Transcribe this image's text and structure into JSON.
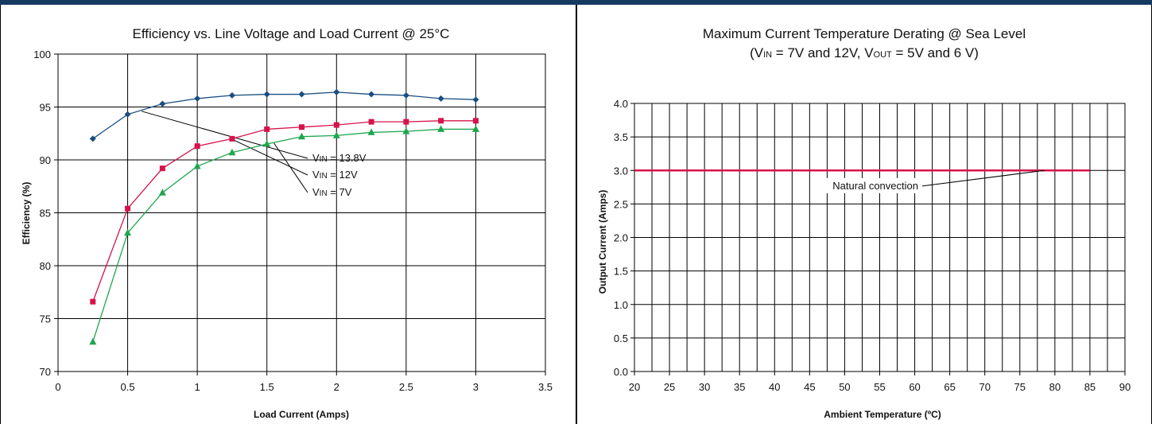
{
  "chart_data": [
    {
      "type": "line",
      "title": "Efficiency vs. Line Voltage and Load Current @ 25°C",
      "xlabel": "Load Current (Amps)",
      "ylabel": "Efficiency (%)",
      "xlim": [
        0,
        3.5
      ],
      "ylim": [
        70,
        100
      ],
      "xticks": [
        "0",
        "0.5",
        "1",
        "1.5",
        "2",
        "2.5",
        "3",
        "3.5"
      ],
      "yticks": [
        "70",
        "75",
        "80",
        "85",
        "90",
        "95",
        "100"
      ],
      "grid": true,
      "x": [
        0.25,
        0.5,
        0.75,
        1.0,
        1.25,
        1.5,
        1.75,
        2.0,
        2.25,
        2.5,
        2.75,
        3.0
      ],
      "series": [
        {
          "name": "VIN = 13.8V",
          "label_main": "V",
          "label_sub": "IN",
          "label_rest": " = 13.8V",
          "color": "#1a4e80",
          "marker": "diamond",
          "values": [
            92.0,
            94.3,
            95.3,
            95.8,
            96.1,
            96.2,
            96.2,
            96.4,
            96.2,
            96.1,
            95.8,
            95.7
          ]
        },
        {
          "name": "VIN = 12V",
          "label_main": "V",
          "label_sub": "IN",
          "label_rest": " = 12V",
          "color": "#d6134b",
          "marker": "square",
          "values": [
            76.6,
            85.4,
            89.2,
            91.3,
            92.0,
            92.9,
            93.1,
            93.3,
            93.6,
            93.6,
            93.7,
            93.7
          ]
        },
        {
          "name": "VIN = 7V",
          "label_main": "V",
          "label_sub": "IN",
          "label_rest": " = 7V",
          "color": "#1fa64f",
          "marker": "triangle",
          "values": [
            72.8,
            83.1,
            86.9,
            89.4,
            90.7,
            91.5,
            92.2,
            92.3,
            92.6,
            92.7,
            92.9,
            92.9
          ]
        }
      ]
    },
    {
      "type": "line",
      "title": "Maximum Current Temperature Derating @ Sea Level",
      "subtitle": {
        "p1": "(V",
        "s1": "IN",
        "p2": " = 7V and 12V, V",
        "s2": "OUT",
        "p3": " = 5V and 6 V)"
      },
      "xlabel": "Ambient Temperature (ºC)",
      "ylabel": "Output Current (Amps)",
      "xlim": [
        20,
        90
      ],
      "ylim": [
        0,
        4
      ],
      "xticks": [
        "20",
        "25",
        "30",
        "35",
        "40",
        "45",
        "50",
        "55",
        "60",
        "65",
        "70",
        "75",
        "80",
        "85",
        "90"
      ],
      "yticks": [
        "0.0",
        "0.5",
        "1.0",
        "1.5",
        "2.0",
        "2.5",
        "3.0",
        "3.5",
        "4.0"
      ],
      "grid": true,
      "series": [
        {
          "name": "Natural convection",
          "color": "#d6134b",
          "x": [
            20,
            85
          ],
          "values": [
            3.0,
            3.0
          ]
        }
      ]
    }
  ]
}
